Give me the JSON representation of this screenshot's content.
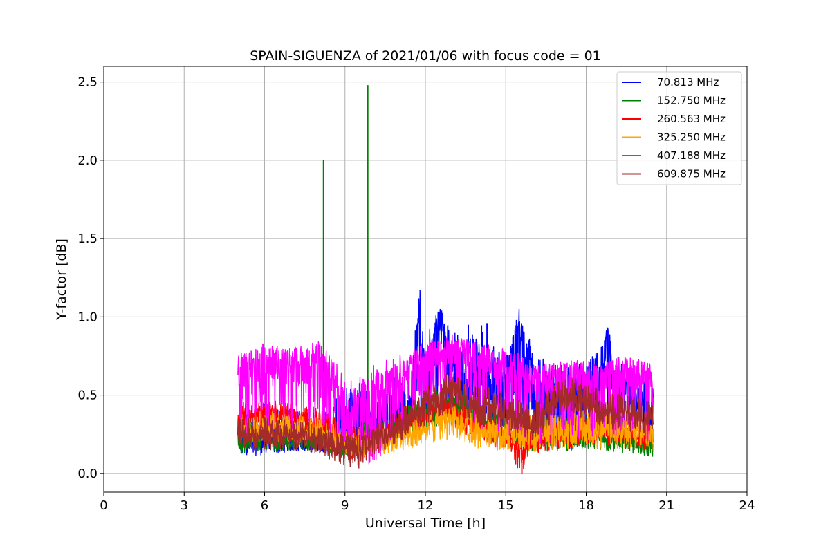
{
  "chart_data": {
    "type": "line",
    "title": "SPAIN-SIGUENZA of 2021/01/06 with focus code = 01",
    "xlabel": "Universal Time [h]",
    "ylabel": "Y-factor [dB]",
    "xlim": [
      0,
      24
    ],
    "ylim": [
      -0.12,
      2.6
    ],
    "xticks": [
      "0",
      "3",
      "6",
      "9",
      "12",
      "15",
      "18",
      "21",
      "24"
    ],
    "yticks": [
      "0.0",
      "0.5",
      "1.0",
      "1.5",
      "2.0",
      "2.5"
    ],
    "grid": true,
    "legend_position": "top-right",
    "x_range_data": [
      5.0,
      20.5
    ],
    "series": [
      {
        "name": " 70.813 MHz",
        "color": "#0000ff",
        "x": [
          5,
          6,
          7,
          8,
          8.5,
          9,
          9.5,
          10,
          10.5,
          11,
          11.5,
          11.8,
          12,
          12.5,
          13,
          13.5,
          14,
          14.5,
          15,
          15.5,
          16,
          16.5,
          17,
          17.5,
          18,
          18.5,
          18.8,
          19,
          19.5,
          20,
          20.5
        ],
        "values": [
          0.2,
          0.22,
          0.2,
          0.18,
          0.17,
          0.3,
          0.42,
          0.35,
          0.3,
          0.35,
          0.45,
          1.09,
          0.55,
          1.04,
          0.6,
          0.55,
          0.7,
          0.55,
          0.55,
          0.98,
          0.6,
          0.45,
          0.5,
          0.5,
          0.55,
          0.55,
          0.94,
          0.55,
          0.5,
          0.45,
          0.35
        ],
        "min": [
          0.1,
          0.12,
          0.14,
          0.15,
          0.1,
          0.12,
          0.15,
          0.2,
          0.22,
          0.28,
          0.3,
          0.3,
          0.3,
          0.35,
          0.3,
          0.28,
          0.25,
          0.22,
          0.2,
          0.2,
          0.15,
          0.15,
          0.15,
          0.15,
          0.18,
          0.18,
          0.18,
          0.16,
          0.15,
          0.15,
          0.12
        ],
        "max": [
          0.35,
          0.45,
          0.4,
          0.4,
          0.45,
          0.55,
          0.6,
          0.5,
          0.55,
          0.65,
          0.8,
          1.09,
          0.9,
          1.04,
          0.95,
          0.85,
          0.98,
          0.85,
          0.75,
          0.98,
          0.85,
          0.7,
          0.7,
          0.7,
          0.7,
          0.8,
          0.94,
          0.75,
          0.7,
          0.65,
          0.55
        ],
        "spikes": [
          [
            11.8,
            1.09
          ],
          [
            12.6,
            1.04
          ],
          [
            15.4,
            0.98
          ],
          [
            18.8,
            0.94
          ],
          [
            13.6,
            0.95
          ],
          [
            14.3,
            0.96
          ]
        ]
      },
      {
        "name": "152.750 MHz",
        "color": "#008000",
        "x": [
          5,
          6,
          7,
          8,
          9,
          10,
          11,
          12,
          13,
          14,
          15,
          16,
          17,
          18,
          19,
          20,
          20.5
        ],
        "values": [
          0.2,
          0.22,
          0.2,
          0.2,
          0.15,
          0.2,
          0.28,
          0.4,
          0.45,
          0.35,
          0.25,
          0.2,
          0.22,
          0.25,
          0.22,
          0.2,
          0.18
        ],
        "min": [
          0.12,
          0.14,
          0.14,
          0.15,
          0.1,
          0.15,
          0.2,
          0.28,
          0.3,
          0.22,
          0.18,
          0.14,
          0.14,
          0.15,
          0.14,
          0.12,
          0.1
        ],
        "max": [
          0.3,
          0.35,
          0.32,
          0.3,
          0.3,
          0.35,
          0.4,
          0.55,
          0.6,
          0.5,
          0.4,
          0.35,
          0.38,
          0.4,
          0.38,
          0.33,
          0.3
        ],
        "spikes": [
          [
            8.2,
            2.0
          ],
          [
            9.85,
            2.48
          ]
        ]
      },
      {
        "name": "260.563 MHz",
        "color": "#ff0000",
        "x": [
          5,
          6,
          7,
          8,
          9,
          10,
          11,
          12,
          13,
          14,
          15,
          15.6,
          16,
          17,
          18,
          19,
          20,
          20.5
        ],
        "values": [
          0.35,
          0.4,
          0.38,
          0.32,
          0.22,
          0.2,
          0.3,
          0.4,
          0.4,
          0.3,
          0.2,
          0.15,
          0.2,
          0.25,
          0.28,
          0.25,
          0.25,
          0.25
        ],
        "min": [
          0.25,
          0.28,
          0.25,
          0.22,
          0.08,
          0.1,
          0.2,
          0.3,
          0.3,
          0.2,
          0.12,
          0.0,
          0.12,
          0.16,
          0.18,
          0.18,
          0.16,
          0.15
        ],
        "max": [
          0.45,
          0.48,
          0.45,
          0.42,
          0.32,
          0.3,
          0.4,
          0.5,
          0.5,
          0.4,
          0.3,
          0.25,
          0.3,
          0.35,
          0.38,
          0.35,
          0.35,
          0.35
        ],
        "spikes": [
          [
            15.6,
            0.0
          ]
        ]
      },
      {
        "name": "325.250 MHz",
        "color": "#ffa500",
        "x": [
          5,
          6,
          7,
          8,
          9,
          10,
          11,
          12,
          13,
          14,
          15,
          16,
          17,
          18,
          19,
          20,
          20.5
        ],
        "values": [
          0.28,
          0.3,
          0.28,
          0.26,
          0.18,
          0.18,
          0.22,
          0.3,
          0.35,
          0.28,
          0.25,
          0.25,
          0.28,
          0.3,
          0.28,
          0.26,
          0.25
        ],
        "min": [
          0.2,
          0.2,
          0.2,
          0.18,
          0.1,
          0.1,
          0.14,
          0.18,
          0.2,
          0.16,
          0.15,
          0.14,
          0.15,
          0.16,
          0.16,
          0.15,
          0.14
        ],
        "max": [
          0.38,
          0.4,
          0.38,
          0.36,
          0.28,
          0.28,
          0.32,
          0.42,
          0.46,
          0.4,
          0.36,
          0.38,
          0.4,
          0.42,
          0.4,
          0.37,
          0.35
        ],
        "spikes": []
      },
      {
        "name": "407.188 MHz",
        "color": "#ff00ff",
        "x": [
          5,
          6,
          7,
          8,
          8.7,
          9,
          9.5,
          10,
          10.5,
          11,
          11.5,
          12,
          12.5,
          13,
          13.5,
          14,
          14.5,
          15,
          15.5,
          16,
          16.5,
          17,
          17.5,
          18,
          18.5,
          19,
          19.5,
          20,
          20.5
        ],
        "values": [
          0.65,
          0.72,
          0.68,
          0.68,
          0.55,
          0.3,
          0.4,
          0.5,
          0.55,
          0.6,
          0.68,
          0.72,
          0.76,
          0.8,
          0.76,
          0.75,
          0.72,
          0.68,
          0.66,
          0.62,
          0.6,
          0.6,
          0.62,
          0.62,
          0.6,
          0.64,
          0.65,
          0.62,
          0.6
        ],
        "min": [
          0.2,
          0.3,
          0.28,
          0.25,
          0.2,
          0.05,
          0.02,
          0.05,
          0.15,
          0.25,
          0.3,
          0.35,
          0.4,
          0.4,
          0.3,
          0.28,
          0.25,
          0.25,
          0.2,
          0.2,
          0.18,
          0.2,
          0.2,
          0.2,
          0.22,
          0.22,
          0.2,
          0.2,
          0.2
        ],
        "max": [
          0.76,
          0.84,
          0.8,
          0.85,
          0.7,
          0.62,
          0.62,
          0.7,
          0.72,
          0.75,
          0.8,
          0.84,
          0.85,
          0.88,
          0.85,
          0.84,
          0.8,
          0.78,
          0.75,
          0.72,
          0.7,
          0.72,
          0.72,
          0.72,
          0.7,
          0.74,
          0.75,
          0.72,
          0.7
        ],
        "spikes": []
      },
      {
        "name": "609.875 MHz",
        "color": "#a52a2a",
        "x": [
          5,
          6,
          7,
          8,
          9,
          9.5,
          10,
          10.5,
          11,
          11.5,
          12,
          12.5,
          13,
          13.5,
          14,
          14.5,
          15,
          15.5,
          16,
          16.5,
          17,
          17.5,
          18,
          18.5,
          19,
          19.5,
          20,
          20.5
        ],
        "values": [
          0.25,
          0.25,
          0.24,
          0.22,
          0.15,
          0.15,
          0.2,
          0.25,
          0.3,
          0.35,
          0.42,
          0.48,
          0.55,
          0.48,
          0.42,
          0.42,
          0.4,
          0.35,
          0.32,
          0.4,
          0.48,
          0.5,
          0.45,
          0.42,
          0.4,
          0.38,
          0.36,
          0.35
        ],
        "min": [
          0.15,
          0.15,
          0.15,
          0.12,
          0.05,
          0.02,
          0.1,
          0.15,
          0.2,
          0.25,
          0.3,
          0.35,
          0.4,
          0.35,
          0.3,
          0.3,
          0.28,
          0.24,
          0.2,
          0.28,
          0.35,
          0.38,
          0.33,
          0.3,
          0.28,
          0.27,
          0.25,
          0.24
        ],
        "max": [
          0.35,
          0.36,
          0.34,
          0.32,
          0.26,
          0.26,
          0.3,
          0.36,
          0.42,
          0.47,
          0.55,
          0.6,
          0.66,
          0.6,
          0.55,
          0.55,
          0.52,
          0.46,
          0.44,
          0.52,
          0.6,
          0.62,
          0.57,
          0.54,
          0.52,
          0.5,
          0.48,
          0.46
        ],
        "spikes": []
      }
    ]
  }
}
